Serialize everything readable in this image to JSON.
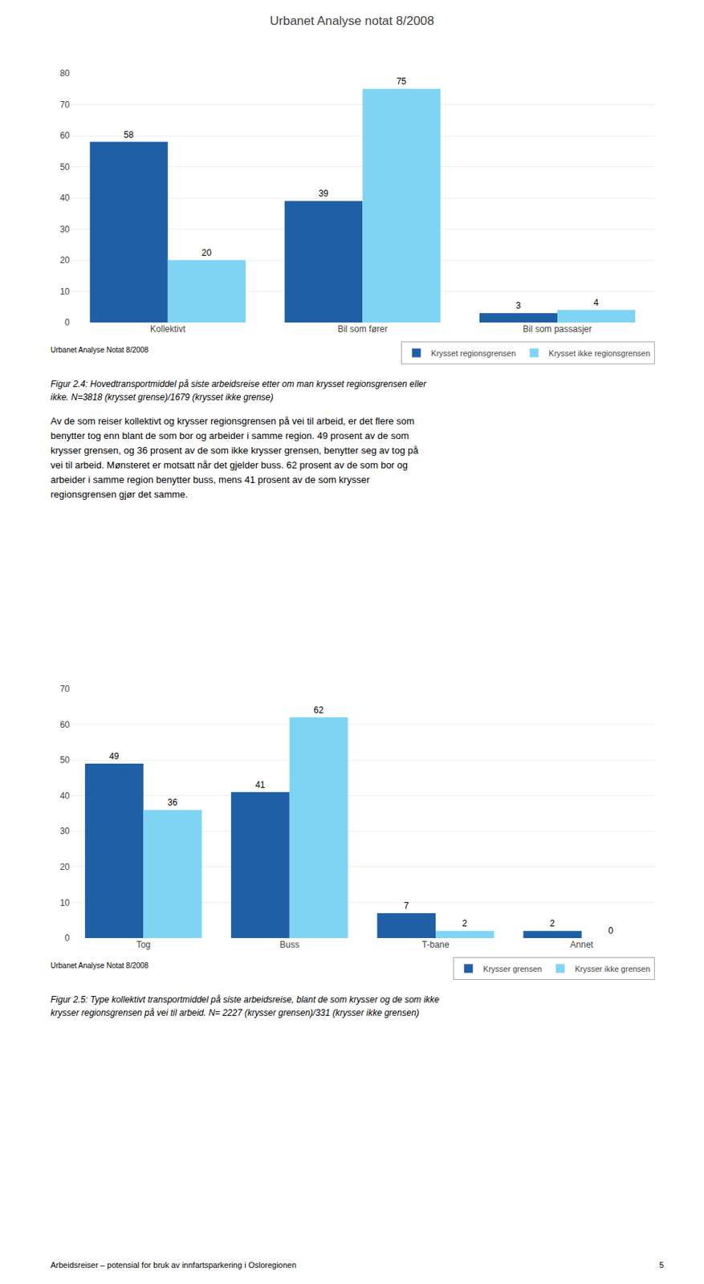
{
  "title": "Urbanet Analyse notat 8/2008",
  "annotations": [
    "Av de som reiser kollektivt og krysser regionsgrensen på vei til arbeid, er det flere som",
    "benytter tog enn blant de som bor og arbeider i samme region. 49 prosent av de som",
    "krysser grensen, og 36 prosent av de som ikke krysser grensen, benytter seg av tog på",
    "vei til arbeid. Mønsteret er motsatt når det gjelder buss. 62 prosent av de som bor og",
    "arbeider i samme region benytter buss, mens 41 prosent av de som krysser",
    "regionsgrensen gjør det samme.",
    "Arbeidsreiser – potensial for bruk av innfartsparkering i Osloregionen",
    "5"
  ],
  "chart_data": [
    {
      "type": "bar",
      "categories": [
        "Kollektivt",
        "Bil som fører",
        "Bil som passasjer"
      ],
      "series": [
        {
          "name": "Krysset regionsgrensen",
          "color": "#1F5FA6",
          "values": [
            58,
            39,
            3
          ]
        },
        {
          "name": "Krysset ikke regionsgrensen",
          "color": "#7FD4F4",
          "values": [
            20,
            75,
            4
          ]
        }
      ],
      "ylim": [
        0,
        80
      ],
      "yticks": [
        0,
        10,
        20,
        30,
        40,
        50,
        60,
        70,
        80
      ],
      "grid": true,
      "data_labels": true,
      "legend": "lower right",
      "annotations": [
        "Urbanet Analyse Notat 8/2008",
        "Figur 2.4: Hovedtransportmiddel på siste arbeidsreise etter om man krysset regionsgrensen eller",
        "ikke. N=3818 (krysset grense)/1679 (krysset ikke grense)"
      ]
    },
    {
      "type": "bar",
      "categories": [
        "Tog",
        "Buss",
        "T-bane",
        "Annet"
      ],
      "series": [
        {
          "name": "Krysser grensen",
          "color": "#1F5FA6",
          "values": [
            49,
            41,
            7,
            2
          ]
        },
        {
          "name": "Krysser ikke grensen",
          "color": "#7FD4F4",
          "values": [
            36,
            62,
            2,
            0
          ]
        }
      ],
      "ylim": [
        0,
        70
      ],
      "yticks": [
        0,
        10,
        20,
        30,
        40,
        50,
        60,
        70
      ],
      "grid": true,
      "data_labels": true,
      "legend": "lower right",
      "annotations": [
        "Urbanet Analyse Notat 8/2008",
        "Figur 2.5: Type kollektivt transportmiddel på siste arbeidsreise, blant de som krysser og de som ikke",
        "krysser regionsgrensen på vei til arbeid. N= 2227 (krysser grensen)/331 (krysser ikke grensen)"
      ]
    }
  ]
}
